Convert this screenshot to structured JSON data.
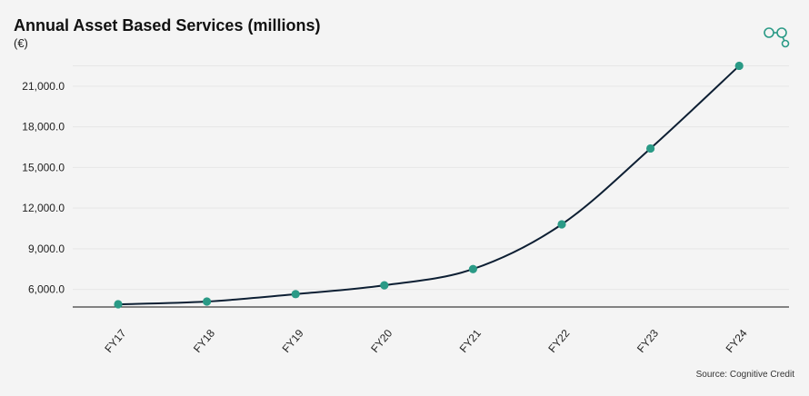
{
  "chart_data": {
    "type": "line",
    "title": "Annual Asset Based Services (millions)",
    "subtitle": "(€)",
    "categories": [
      "FY17",
      "FY18",
      "FY19",
      "FY20",
      "FY21",
      "FY22",
      "FY23",
      "FY24"
    ],
    "series": [
      {
        "name": "Annual Asset Based Services",
        "values": [
          4900,
          5100,
          5650,
          6300,
          7500,
          10800,
          16400,
          22500
        ]
      }
    ],
    "yticks": [
      6000,
      9000,
      12000,
      15000,
      18000,
      21000
    ],
    "ytick_labels": [
      "6,000.0",
      "9,000.0",
      "12,000.0",
      "15,000.0",
      "18,000.0",
      "21,000.0"
    ],
    "ylim": [
      4700,
      23200
    ],
    "xlabel": "",
    "ylabel": "",
    "grid": true,
    "colors": {
      "line": "#0d1f33",
      "marker": "#2a9a86",
      "grid": "#e6e6e6",
      "axis": "#111111"
    }
  },
  "source": "Source: Cognitive Credit",
  "logo": {
    "icon": "cognitive-credit-logo-icon",
    "color": "#2a9a86"
  }
}
